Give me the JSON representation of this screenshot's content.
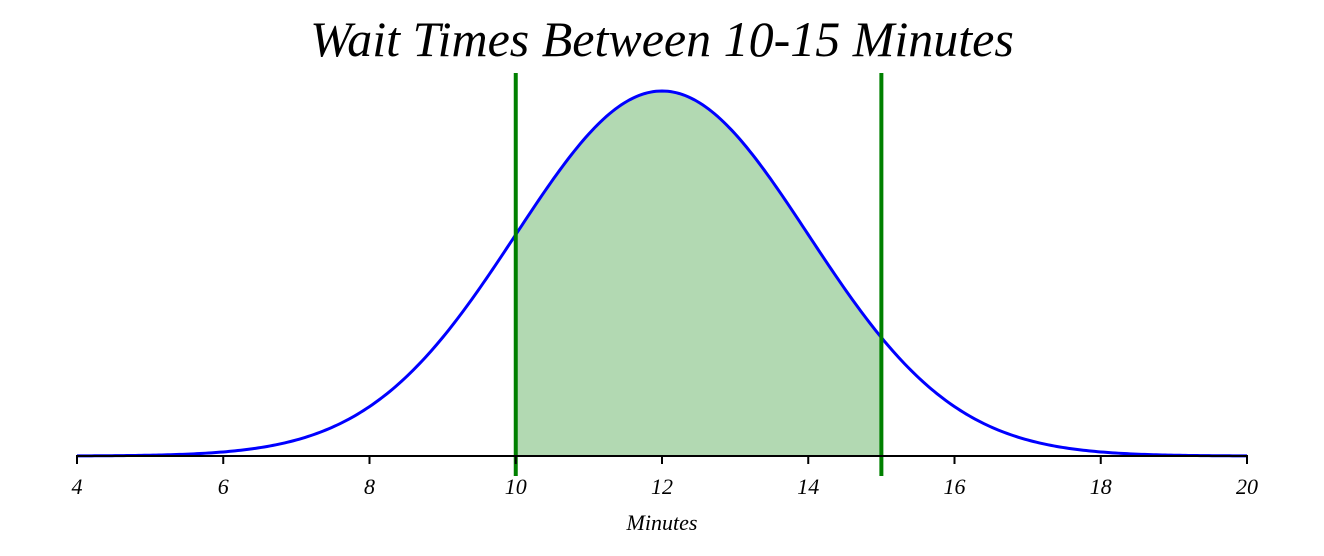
{
  "chart_data": {
    "type": "area",
    "title": "Wait Times Between 10-15 Minutes",
    "xlabel": "Minutes",
    "ylabel": "",
    "xlim": [
      4,
      20
    ],
    "xticks": [
      4,
      6,
      8,
      10,
      12,
      14,
      16,
      18,
      20
    ],
    "distribution": {
      "kind": "normal",
      "mean": 12,
      "sd": 2
    },
    "shaded_range": [
      10,
      15
    ],
    "vertical_lines": [
      10,
      15
    ],
    "y_axis_visible": false,
    "grid": false,
    "colors": {
      "curve": "#0000ff",
      "fill": "#b2d9b2",
      "vline": "#008000",
      "axis": "#000000"
    }
  }
}
